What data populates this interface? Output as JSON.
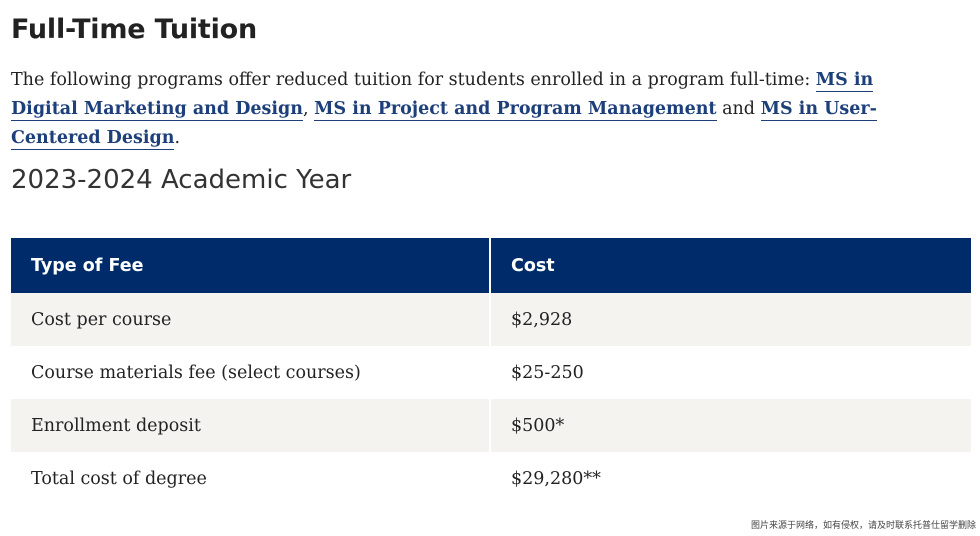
{
  "page": {
    "title": "Full-Time Tuition"
  },
  "intro": {
    "lead_text": "The following programs offer reduced tuition for students enrolled in a program full-time: ",
    "link_1": "MS in Digital Marketing and Design",
    "sep_1": ", ",
    "link_2": "MS in Project and Program Management",
    "sep_2": " and ",
    "link_3": "MS in User-Centered Design",
    "end": "."
  },
  "section": {
    "heading": "2023-2024 Academic Year"
  },
  "table": {
    "headers": [
      "Type of Fee",
      "Cost"
    ],
    "rows": [
      {
        "fee": "Cost per course",
        "cost": "$2,928"
      },
      {
        "fee": "Course materials fee (select courses)",
        "cost": "$25-250"
      },
      {
        "fee": "Enrollment deposit",
        "cost": "$500*"
      },
      {
        "fee": "Total cost of degree",
        "cost": "$29,280**"
      }
    ]
  },
  "watermark": {
    "text": "图片来源于网络，如有侵权，请及时联系托普仕留学删除"
  },
  "colors": {
    "header_bg": "#002b6b",
    "link": "#1d3f7a",
    "row_alt_bg": "#f4f3f0"
  }
}
